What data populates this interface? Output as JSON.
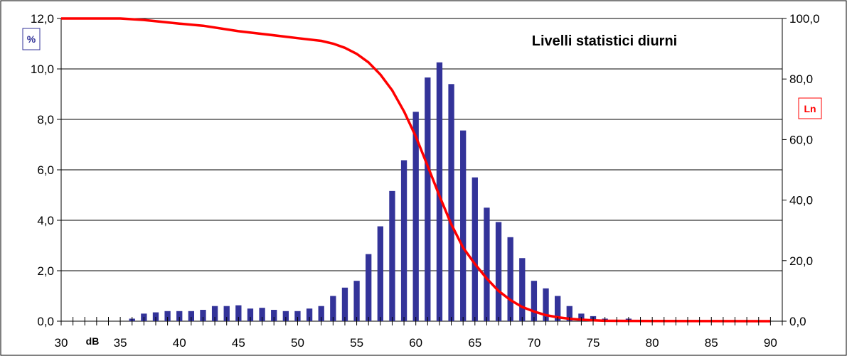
{
  "chart_data": {
    "type": "bar",
    "title": "Livelli statistici diurni",
    "xunit": "dB",
    "left_unit": "%",
    "right_unit": "Ln",
    "xlim": [
      30,
      91
    ],
    "ylim_left": [
      0,
      12
    ],
    "ylim_right": [
      0,
      100
    ],
    "x_tick_labels": [
      "30",
      "35",
      "40",
      "45",
      "50",
      "55",
      "60",
      "65",
      "70",
      "75",
      "80",
      "85",
      "90"
    ],
    "left_tick_labels": [
      "0,0",
      "2,0",
      "4,0",
      "6,0",
      "8,0",
      "10,0",
      "12,0"
    ],
    "right_tick_labels": [
      "0,0",
      "20,0",
      "40,0",
      "60,0",
      "80,0",
      "100,0"
    ],
    "grid": true,
    "colors": {
      "bars": "#333399",
      "line": "#ff0000",
      "axes": "#000000"
    },
    "bars": {
      "name": "%",
      "x": [
        30,
        31,
        32,
        33,
        34,
        35,
        36,
        37,
        38,
        39,
        40,
        41,
        42,
        43,
        44,
        45,
        46,
        47,
        48,
        49,
        50,
        51,
        52,
        53,
        54,
        55,
        56,
        57,
        58,
        59,
        60,
        61,
        62,
        63,
        64,
        65,
        66,
        67,
        68,
        69,
        70,
        71,
        72,
        73,
        74,
        75,
        76,
        77,
        78,
        79,
        80,
        81,
        82,
        83,
        84,
        85,
        86,
        87,
        88,
        89,
        90
      ],
      "values": [
        0,
        0,
        0,
        0,
        0,
        0,
        0.1,
        0.3,
        0.35,
        0.4,
        0.4,
        0.4,
        0.45,
        0.6,
        0.6,
        0.63,
        0.5,
        0.53,
        0.45,
        0.4,
        0.4,
        0.5,
        0.6,
        1.0,
        1.33,
        1.6,
        2.66,
        3.76,
        5.16,
        6.38,
        8.3,
        9.66,
        10.26,
        9.4,
        7.56,
        5.7,
        4.5,
        3.93,
        3.33,
        2.5,
        1.6,
        1.3,
        1.0,
        0.6,
        0.3,
        0.2,
        0.1,
        0.05,
        0.1,
        0.05,
        0,
        0,
        0,
        0,
        0,
        0,
        0,
        0,
        0,
        0,
        0
      ]
    },
    "cumulative": {
      "name": "Ln",
      "x": [
        30,
        35,
        37,
        40,
        42,
        45,
        47,
        50,
        52,
        53,
        54,
        55,
        56,
        57,
        58,
        59,
        60,
        61,
        62,
        63,
        64,
        65,
        66,
        67,
        68,
        69,
        70,
        71,
        72,
        73,
        74,
        75,
        76,
        78,
        80,
        90
      ],
      "values": [
        100,
        100,
        99.5,
        98.3,
        97.6,
        95.8,
        94.9,
        93.5,
        92.6,
        91.7,
        90.3,
        88.3,
        85.5,
        81.5,
        76.3,
        69.3,
        61.0,
        51.3,
        41.4,
        32.0,
        24.3,
        18.9,
        14.1,
        10.0,
        7.0,
        4.7,
        3.2,
        2.0,
        1.3,
        0.8,
        0.5,
        0.3,
        0.15,
        0.1,
        0.05,
        0.0
      ]
    }
  }
}
